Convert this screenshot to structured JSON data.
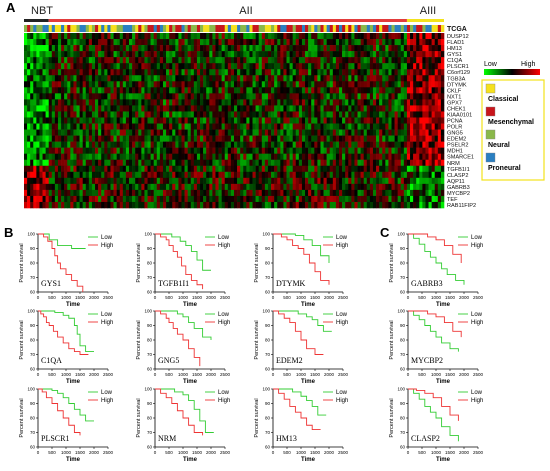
{
  "panel_letters": {
    "a": "A",
    "b": "B",
    "c": "C"
  },
  "heatmap": {
    "groups": [
      {
        "label": "NBT",
        "color": "#222222",
        "samples": 8
      },
      {
        "label": "AII",
        "color": "#e23b3b",
        "samples": 116
      },
      {
        "label": "AIII",
        "color": "#f2e21c",
        "samples": 12
      }
    ],
    "subtype_row_label": "TCGA",
    "genes": [
      "DUSP12",
      "FLAD1",
      "HM13",
      "GYS1",
      "C1QA",
      "PLSCR1",
      "C6orf129",
      "TGB3A",
      "DTYMK",
      "CKLF",
      "NXT1",
      "GPX7",
      "CHEK1",
      "KIAA0101",
      "PCNA",
      "POLR",
      "GNG5",
      "EDEM2",
      "PSELR2",
      "MDH1",
      "SMARCE1",
      "NRM",
      "TGFB1I1",
      "CLASP2",
      "AQP11",
      "GABRB3",
      "MYCBP2",
      "TEF",
      "RAB11FIP2"
    ],
    "genes_up_in_aiii": 22,
    "color_scale": {
      "low_label": "Low",
      "high_label": "High",
      "low_color": "#00ff00",
      "mid_color": "#000000",
      "high_color": "#ff0000"
    },
    "legend": [
      {
        "label": "Classical",
        "color": "#f5e11d"
      },
      {
        "label": "Mesenchymal",
        "color": "#c8151b"
      },
      {
        "label": "Neural",
        "color": "#8ab84a"
      },
      {
        "label": "Proneural",
        "color": "#2a7fc1"
      }
    ]
  },
  "chart_data": [
    {
      "type": "line",
      "gene": "GYS1",
      "xlabel": "Time",
      "ylabel": "Percent survival",
      "xlim": [
        0,
        2500
      ],
      "ylim": [
        60,
        100
      ],
      "xticks": [
        0,
        500,
        1000,
        1500,
        2000,
        2500
      ],
      "yticks": [
        60,
        70,
        80,
        90,
        100
      ],
      "series": [
        {
          "name": "Low",
          "color": "#33cc33",
          "x": [
            0,
            200,
            400,
            700,
            1200,
            1700
          ],
          "y": [
            100,
            100,
            96,
            92,
            90,
            90
          ]
        },
        {
          "name": "High",
          "color": "#ee3333",
          "x": [
            0,
            200,
            350,
            500,
            600,
            700,
            800,
            1000,
            1200,
            1400,
            1600
          ],
          "y": [
            100,
            98,
            95,
            90,
            85,
            80,
            76,
            72,
            68,
            64,
            60
          ]
        }
      ]
    },
    {
      "type": "line",
      "gene": "TGFB1I1",
      "xlabel": "Time",
      "ylabel": "Percent survival",
      "xlim": [
        0,
        2500
      ],
      "ylim": [
        60,
        100
      ],
      "xticks": [
        0,
        500,
        1000,
        1500,
        2000,
        2500
      ],
      "yticks": [
        60,
        70,
        80,
        90,
        100
      ],
      "series": [
        {
          "name": "Low",
          "color": "#33cc33",
          "x": [
            0,
            300,
            600,
            900,
            1100,
            1300,
            1500,
            1700,
            2000
          ],
          "y": [
            100,
            100,
            98,
            95,
            92,
            88,
            82,
            75,
            75
          ]
        },
        {
          "name": "High",
          "color": "#ee3333",
          "x": [
            0,
            200,
            400,
            500,
            650,
            800,
            950,
            1100,
            1300,
            1500,
            1700
          ],
          "y": [
            100,
            98,
            96,
            92,
            88,
            84,
            78,
            72,
            68,
            65,
            62
          ]
        }
      ]
    },
    {
      "type": "line",
      "gene": "DTYMK",
      "xlabel": "Time",
      "ylabel": "Percent survival",
      "xlim": [
        0,
        2500
      ],
      "ylim": [
        60,
        100
      ],
      "xticks": [
        0,
        500,
        1000,
        1500,
        2000,
        2500
      ],
      "yticks": [
        60,
        70,
        80,
        90,
        100
      ],
      "series": [
        {
          "name": "Low",
          "color": "#33cc33",
          "x": [
            0,
            400,
            800,
            1100,
            1400,
            1700,
            2000
          ],
          "y": [
            100,
            100,
            99,
            96,
            92,
            85,
            80
          ]
        },
        {
          "name": "High",
          "color": "#ee3333",
          "x": [
            0,
            300,
            500,
            700,
            900,
            1100,
            1300,
            1500,
            1700,
            2000
          ],
          "y": [
            100,
            98,
            96,
            92,
            90,
            86,
            80,
            74,
            68,
            65
          ]
        }
      ]
    },
    {
      "type": "line",
      "gene": "C1QA",
      "xlabel": "Time",
      "ylabel": "Percent survival",
      "xlim": [
        0,
        2500
      ],
      "ylim": [
        60,
        100
      ],
      "xticks": [
        0,
        500,
        1000,
        1500,
        2000,
        2500
      ],
      "yticks": [
        60,
        70,
        80,
        90,
        100
      ],
      "series": [
        {
          "name": "Low",
          "color": "#33cc33",
          "x": [
            0,
            300,
            600,
            900,
            1100,
            1300,
            1400,
            1500,
            1700,
            2000
          ],
          "y": [
            100,
            100,
            99,
            97,
            95,
            90,
            84,
            76,
            72,
            72
          ]
        },
        {
          "name": "High",
          "color": "#ee3333",
          "x": [
            0,
            100,
            200,
            300,
            400,
            550,
            700,
            900,
            1100,
            1300,
            1500,
            1800
          ],
          "y": [
            100,
            98,
            96,
            92,
            90,
            86,
            82,
            78,
            74,
            72,
            70,
            70
          ]
        }
      ]
    },
    {
      "type": "line",
      "gene": "GNG5",
      "xlabel": "Time",
      "ylabel": "Percent survival",
      "xlim": [
        0,
        2500
      ],
      "ylim": [
        60,
        100
      ],
      "xticks": [
        0,
        500,
        1000,
        1500,
        2000,
        2500
      ],
      "yticks": [
        60,
        70,
        80,
        90,
        100
      ],
      "series": [
        {
          "name": "Low",
          "color": "#33cc33",
          "x": [
            0,
            400,
            800,
            1000,
            1200,
            1400,
            1700,
            2000
          ],
          "y": [
            100,
            100,
            98,
            96,
            92,
            88,
            82,
            80
          ]
        },
        {
          "name": "High",
          "color": "#ee3333",
          "x": [
            0,
            200,
            400,
            500,
            650,
            800,
            1000,
            1200,
            1400,
            1600
          ],
          "y": [
            100,
            98,
            95,
            92,
            88,
            84,
            80,
            74,
            68,
            62
          ]
        }
      ]
    },
    {
      "type": "line",
      "gene": "EDEM2",
      "xlabel": "Time",
      "ylabel": "Percent survival",
      "xlim": [
        0,
        2500
      ],
      "ylim": [
        60,
        100
      ],
      "xticks": [
        0,
        500,
        1000,
        1500,
        2000,
        2500
      ],
      "yticks": [
        60,
        70,
        80,
        90,
        100
      ],
      "series": [
        {
          "name": "Low",
          "color": "#33cc33",
          "x": [
            0,
            500,
            900,
            1200,
            1400,
            1600,
            1800,
            2100
          ],
          "y": [
            100,
            100,
            98,
            96,
            94,
            90,
            86,
            86
          ]
        },
        {
          "name": "High",
          "color": "#ee3333",
          "x": [
            0,
            200,
            400,
            600,
            800,
            1000,
            1200,
            1500,
            1800
          ],
          "y": [
            100,
            98,
            95,
            92,
            86,
            80,
            74,
            70,
            70
          ]
        }
      ]
    },
    {
      "type": "line",
      "gene": "PLSCR1",
      "xlabel": "Time",
      "ylabel": "Percent survival",
      "xlim": [
        0,
        2500
      ],
      "ylim": [
        60,
        100
      ],
      "xticks": [
        0,
        500,
        1000,
        1500,
        2000,
        2500
      ],
      "yticks": [
        60,
        70,
        80,
        90,
        100
      ],
      "series": [
        {
          "name": "Low",
          "color": "#33cc33",
          "x": [
            0,
            300,
            500,
            700,
            900,
            1100,
            1300,
            1500,
            1700,
            2000
          ],
          "y": [
            100,
            100,
            99,
            97,
            94,
            90,
            86,
            82,
            78,
            78
          ]
        },
        {
          "name": "High",
          "color": "#ee3333",
          "x": [
            0,
            150,
            300,
            500,
            700,
            900,
            1100,
            1300,
            1500
          ],
          "y": [
            100,
            98,
            94,
            90,
            85,
            80,
            75,
            70,
            68
          ]
        }
      ]
    },
    {
      "type": "line",
      "gene": "NRM",
      "xlabel": "Time",
      "ylabel": "Percent survival",
      "xlim": [
        0,
        2500
      ],
      "ylim": [
        60,
        100
      ],
      "xticks": [
        0,
        500,
        1000,
        1500,
        2000,
        2500
      ],
      "yticks": [
        60,
        70,
        80,
        90,
        100
      ],
      "series": [
        {
          "name": "Low",
          "color": "#33cc33",
          "x": [
            0,
            400,
            700,
            1000,
            1200,
            1400,
            1600,
            1800,
            2100
          ],
          "y": [
            100,
            100,
            98,
            96,
            92,
            86,
            78,
            70,
            70
          ]
        },
        {
          "name": "High",
          "color": "#ee3333",
          "x": [
            0,
            200,
            400,
            600,
            800,
            1000,
            1200,
            1400,
            1700
          ],
          "y": [
            100,
            97,
            94,
            90,
            85,
            80,
            75,
            70,
            68
          ]
        }
      ]
    },
    {
      "type": "line",
      "gene": "HM13",
      "xlabel": "Time",
      "ylabel": "Percent survival",
      "xlim": [
        0,
        2500
      ],
      "ylim": [
        60,
        100
      ],
      "xticks": [
        0,
        500,
        1000,
        1500,
        2000,
        2500
      ],
      "yticks": [
        60,
        70,
        80,
        90,
        100
      ],
      "series": [
        {
          "name": "Low",
          "color": "#33cc33",
          "x": [
            0,
            400,
            700,
            1000,
            1200,
            1400,
            1600,
            1900
          ],
          "y": [
            100,
            100,
            98,
            95,
            92,
            88,
            82,
            82
          ]
        },
        {
          "name": "High",
          "color": "#ee3333",
          "x": [
            0,
            200,
            400,
            600,
            800,
            1000,
            1200,
            1400,
            1700
          ],
          "y": [
            100,
            97,
            93,
            88,
            84,
            80,
            75,
            72,
            72
          ]
        }
      ]
    },
    {
      "type": "line",
      "gene": "GABRB3",
      "xlabel": "Time",
      "ylabel": "Percent survival",
      "xlim": [
        0,
        2500
      ],
      "ylim": [
        60,
        100
      ],
      "xticks": [
        0,
        500,
        1000,
        1500,
        2000,
        2500
      ],
      "yticks": [
        60,
        70,
        80,
        90,
        100
      ],
      "series": [
        {
          "name": "Low",
          "color": "#33cc33",
          "x": [
            0,
            200,
            400,
            600,
            800,
            1000,
            1200,
            1400,
            1700,
            2000
          ],
          "y": [
            100,
            97,
            93,
            88,
            84,
            80,
            76,
            72,
            68,
            65
          ]
        },
        {
          "name": "High",
          "color": "#ee3333",
          "x": [
            0,
            400,
            700,
            1000,
            1300,
            1600,
            1900
          ],
          "y": [
            100,
            100,
            98,
            96,
            92,
            86,
            80
          ]
        }
      ]
    },
    {
      "type": "line",
      "gene": "MYCBP2",
      "xlabel": "Time",
      "ylabel": "Percent survival",
      "xlim": [
        0,
        2500
      ],
      "ylim": [
        60,
        100
      ],
      "xticks": [
        0,
        500,
        1000,
        1500,
        2000,
        2500
      ],
      "yticks": [
        60,
        70,
        80,
        90,
        100
      ],
      "series": [
        {
          "name": "Low",
          "color": "#33cc33",
          "x": [
            0,
            200,
            400,
            600,
            800,
            1000,
            1200,
            1500,
            1800
          ],
          "y": [
            100,
            97,
            94,
            90,
            86,
            82,
            78,
            74,
            72
          ]
        },
        {
          "name": "High",
          "color": "#ee3333",
          "x": [
            0,
            400,
            700,
            1000,
            1300,
            1600,
            1900
          ],
          "y": [
            100,
            100,
            98,
            96,
            92,
            86,
            82
          ]
        }
      ]
    },
    {
      "type": "line",
      "gene": "CLASP2",
      "xlabel": "Time",
      "ylabel": "Percent survival",
      "xlim": [
        0,
        2500
      ],
      "ylim": [
        60,
        100
      ],
      "xticks": [
        0,
        500,
        1000,
        1500,
        2000,
        2500
      ],
      "yticks": [
        60,
        70,
        80,
        90,
        100
      ],
      "series": [
        {
          "name": "Low",
          "color": "#33cc33",
          "x": [
            0,
            200,
            400,
            600,
            800,
            1000,
            1200,
            1500,
            1800
          ],
          "y": [
            100,
            97,
            93,
            88,
            84,
            80,
            74,
            68,
            64
          ]
        },
        {
          "name": "High",
          "color": "#ee3333",
          "x": [
            0,
            300,
            600,
            900,
            1200,
            1500,
            1800
          ],
          "y": [
            100,
            99,
            97,
            94,
            88,
            82,
            78
          ]
        }
      ]
    }
  ]
}
